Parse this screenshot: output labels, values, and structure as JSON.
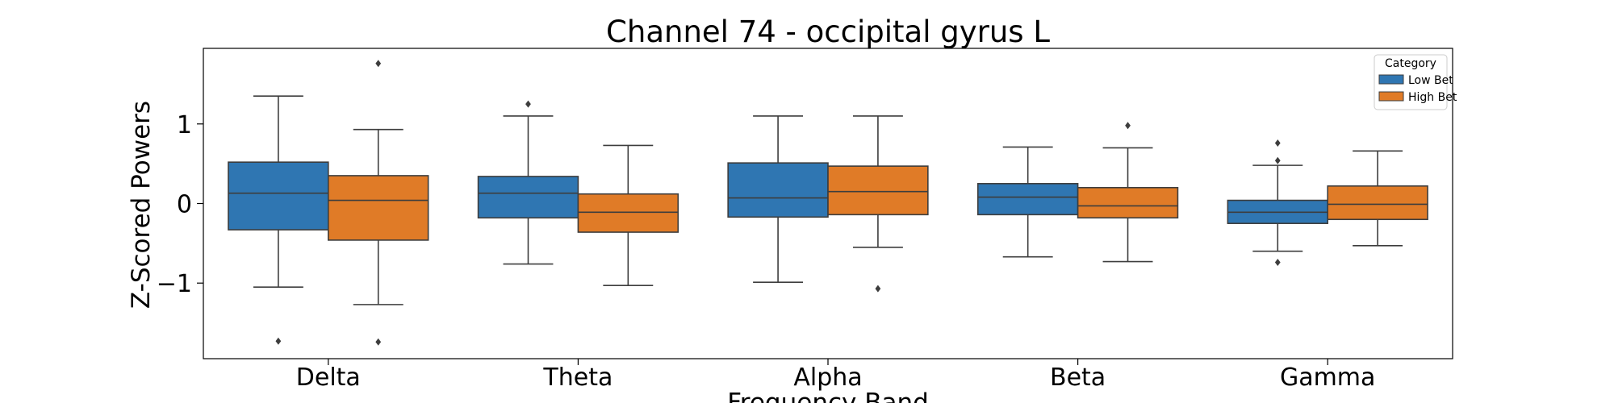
{
  "chart_data": {
    "type": "boxplot",
    "title": "Channel 74 - occipital gyrus L",
    "xlabel": "Frequency Band",
    "ylabel": "Z-Scored Powers",
    "ylim": [
      -1.95,
      1.95
    ],
    "yticks": [
      -1,
      0,
      1
    ],
    "ytick_labels": [
      "−1",
      "0",
      "1"
    ],
    "categories": [
      "Delta",
      "Theta",
      "Alpha",
      "Beta",
      "Gamma"
    ],
    "legend": {
      "title": "Category",
      "position": "top-right"
    },
    "series": [
      {
        "name": "Low Bet",
        "color": "#2f76b2",
        "boxes": [
          {
            "whisker_low": -1.05,
            "q1": -0.33,
            "median": 0.13,
            "q3": 0.52,
            "whisker_high": 1.35,
            "outliers": [
              -1.73
            ]
          },
          {
            "whisker_low": -0.76,
            "q1": -0.18,
            "median": 0.13,
            "q3": 0.34,
            "whisker_high": 1.1,
            "outliers": [
              1.25
            ]
          },
          {
            "whisker_low": -0.99,
            "q1": -0.17,
            "median": 0.07,
            "q3": 0.51,
            "whisker_high": 1.1,
            "outliers": []
          },
          {
            "whisker_low": -0.67,
            "q1": -0.14,
            "median": 0.08,
            "q3": 0.25,
            "whisker_high": 0.71,
            "outliers": []
          },
          {
            "whisker_low": -0.6,
            "q1": -0.25,
            "median": -0.11,
            "q3": 0.04,
            "whisker_high": 0.48,
            "outliers": [
              0.76,
              0.54,
              -0.74
            ]
          }
        ]
      },
      {
        "name": "High Bet",
        "color": "#e07b27",
        "boxes": [
          {
            "whisker_low": -1.27,
            "q1": -0.46,
            "median": 0.04,
            "q3": 0.35,
            "whisker_high": 0.93,
            "outliers": [
              1.76,
              -1.74
            ]
          },
          {
            "whisker_low": -1.03,
            "q1": -0.36,
            "median": -0.11,
            "q3": 0.12,
            "whisker_high": 0.73,
            "outliers": []
          },
          {
            "whisker_low": -0.55,
            "q1": -0.14,
            "median": 0.15,
            "q3": 0.47,
            "whisker_high": 1.1,
            "outliers": [
              -1.07
            ]
          },
          {
            "whisker_low": -0.73,
            "q1": -0.18,
            "median": -0.03,
            "q3": 0.2,
            "whisker_high": 0.7,
            "outliers": [
              0.98
            ]
          },
          {
            "whisker_low": -0.53,
            "q1": -0.2,
            "median": -0.01,
            "q3": 0.22,
            "whisker_high": 0.66,
            "outliers": []
          }
        ]
      }
    ]
  }
}
